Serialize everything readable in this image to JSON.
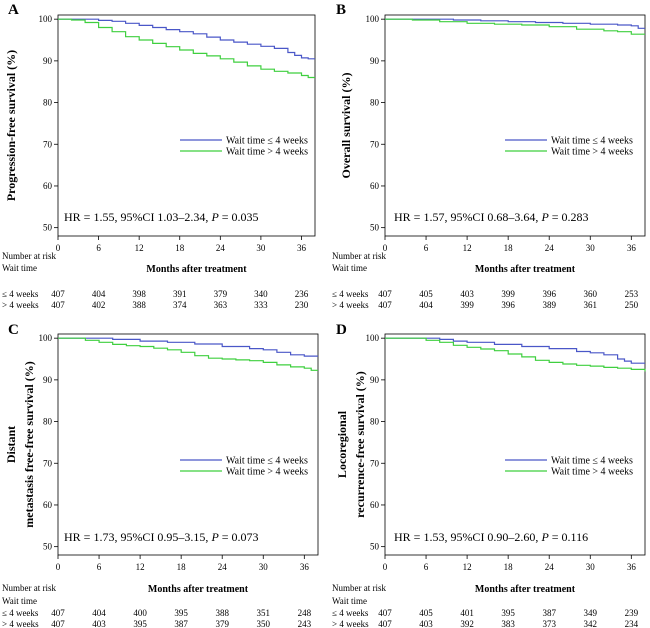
{
  "colors": {
    "short": "#4a57c8",
    "long": "#3fcf3f"
  },
  "risk_header": {
    "number_at_risk": "Number at risk",
    "wait_time": "Wait time"
  },
  "chart_data": [
    {
      "type": "line",
      "panel": "A",
      "ylabel": "Progression-free survival (%)",
      "ylabel_lines": [
        "Progression-free survival (%)"
      ],
      "xlabel": "Months after treatment",
      "xlim": [
        0,
        38
      ],
      "ylim": [
        48,
        101
      ],
      "xticks": [
        0,
        6,
        12,
        18,
        24,
        30,
        36
      ],
      "yticks": [
        50,
        60,
        70,
        80,
        90,
        100
      ],
      "legend": [
        "Wait time ≤ 4 weeks",
        "Wait time > 4 weeks"
      ],
      "annotation": {
        "prefix": "HR = 1.55, 95%CI 1.03–2.34, ",
        "p_label": "P",
        "suffix": " = 0.035"
      },
      "series": [
        {
          "name": "Wait time ≤ 4 weeks",
          "x": [
            0,
            4,
            6,
            8,
            10,
            12,
            14,
            16,
            18,
            20,
            22,
            24,
            26,
            28,
            30,
            32,
            34,
            35,
            36,
            37,
            38
          ],
          "y": [
            100,
            100,
            99.7,
            99.5,
            99.0,
            98.5,
            98.0,
            97.5,
            97.0,
            96.5,
            95.7,
            95.0,
            94.5,
            94.0,
            93.5,
            93.0,
            92.0,
            91.3,
            90.7,
            90.5,
            90.5
          ]
        },
        {
          "name": "Wait time > 4 weeks",
          "x": [
            0,
            2,
            4,
            6,
            8,
            10,
            12,
            14,
            16,
            18,
            20,
            22,
            24,
            26,
            28,
            30,
            32,
            34,
            36,
            37,
            38
          ],
          "y": [
            100,
            99.8,
            99.2,
            98.0,
            97.0,
            95.8,
            95.0,
            94.2,
            93.4,
            92.6,
            91.8,
            91.2,
            90.5,
            89.7,
            88.8,
            88.0,
            87.5,
            87.1,
            86.5,
            86.0,
            86.0
          ]
        }
      ],
      "risk_table": {
        "rows": [
          {
            "label": "≤ 4 weeks",
            "values": [
              "407",
              "404",
              "398",
              "391",
              "379",
              "340",
              "236"
            ]
          },
          {
            "label": "> 4 weeks",
            "values": [
              "407",
              "402",
              "388",
              "374",
              "363",
              "333",
              "230"
            ]
          }
        ]
      }
    },
    {
      "type": "line",
      "panel": "B",
      "ylabel": "Overall survival (%)",
      "ylabel_lines": [
        "Overall survival (%)"
      ],
      "xlabel": "Months after treatment",
      "xlim": [
        0,
        38
      ],
      "ylim": [
        48,
        101
      ],
      "xticks": [
        0,
        6,
        12,
        18,
        24,
        30,
        36
      ],
      "yticks": [
        50,
        60,
        70,
        80,
        90,
        100
      ],
      "legend": [
        "Wait time ≤ 4 weeks",
        "Wait time > 4 weeks"
      ],
      "annotation": {
        "prefix": "HR = 1.57, 95%CI 0.68–3.64, ",
        "p_label": "P",
        "suffix": " = 0.283"
      },
      "series": [
        {
          "name": "Wait time ≤ 4 weeks",
          "x": [
            0,
            6,
            10,
            14,
            18,
            22,
            26,
            30,
            34,
            36,
            37,
            38
          ],
          "y": [
            100,
            100,
            99.8,
            99.6,
            99.4,
            99.2,
            99.0,
            98.8,
            98.6,
            98.4,
            97.8,
            97.8
          ]
        },
        {
          "name": "Wait time > 4 weeks",
          "x": [
            0,
            4,
            8,
            12,
            16,
            20,
            24,
            28,
            32,
            34,
            36,
            38
          ],
          "y": [
            100,
            99.8,
            99.4,
            99.0,
            98.8,
            98.6,
            98.2,
            97.6,
            97.2,
            97.0,
            96.4,
            96.4
          ]
        }
      ],
      "risk_table": {
        "rows": [
          {
            "label": "≤ 4 weeks",
            "values": [
              "407",
              "405",
              "403",
              "399",
              "396",
              "360",
              "253"
            ]
          },
          {
            "label": "> 4 weeks",
            "values": [
              "407",
              "404",
              "399",
              "396",
              "389",
              "361",
              "250"
            ]
          }
        ]
      }
    },
    {
      "type": "line",
      "panel": "C",
      "ylabel": "Distant metastasis free-free survival (%)",
      "ylabel_lines": [
        "Distant",
        "metastasis free-free survival (%)"
      ],
      "xlabel": "Months after treatment",
      "xlim": [
        0,
        38
      ],
      "ylim": [
        48,
        101
      ],
      "xticks": [
        0,
        6,
        12,
        18,
        24,
        30,
        36
      ],
      "yticks": [
        50,
        60,
        70,
        80,
        90,
        100
      ],
      "legend": [
        "Wait time ≤ 4 weeks",
        "Wait time > 4 weeks"
      ],
      "annotation": {
        "prefix": "HR = 1.73, 95%CI 0.95–3.15, ",
        "p_label": "P",
        "suffix": " = 0.073"
      },
      "series": [
        {
          "name": "Wait time ≤ 4 weeks",
          "x": [
            0,
            4,
            8,
            12,
            16,
            20,
            24,
            28,
            30,
            32,
            34,
            36,
            38
          ],
          "y": [
            100,
            100,
            99.7,
            99.3,
            99.0,
            98.6,
            98.0,
            97.5,
            97.2,
            96.6,
            96.0,
            95.7,
            95.7
          ]
        },
        {
          "name": "Wait time > 4 weeks",
          "x": [
            0,
            4,
            6,
            8,
            10,
            12,
            14,
            16,
            18,
            20,
            22,
            24,
            26,
            28,
            30,
            32,
            34,
            36,
            37,
            38
          ],
          "y": [
            100,
            99.5,
            99.0,
            98.5,
            98.2,
            98.0,
            97.6,
            97.2,
            96.6,
            95.8,
            95.2,
            95.0,
            94.8,
            94.6,
            94.2,
            93.6,
            93.1,
            92.8,
            92.3,
            92.3
          ]
        }
      ],
      "risk_table": {
        "rows": [
          {
            "label": "≤ 4 weeks",
            "values": [
              "407",
              "404",
              "400",
              "395",
              "388",
              "351",
              "248"
            ]
          },
          {
            "label": "> 4 weeks",
            "values": [
              "407",
              "403",
              "395",
              "387",
              "379",
              "350",
              "243"
            ]
          }
        ]
      }
    },
    {
      "type": "line",
      "panel": "D",
      "ylabel": "Locoregional recurrence-free survival (%)",
      "ylabel_lines": [
        "Locoregional",
        "recurrence-free  survival (%)"
      ],
      "xlabel": "Months after treatment",
      "xlim": [
        0,
        38
      ],
      "ylim": [
        48,
        101
      ],
      "xticks": [
        0,
        6,
        12,
        18,
        24,
        30,
        36
      ],
      "yticks": [
        50,
        60,
        70,
        80,
        90,
        100
      ],
      "legend": [
        "Wait time ≤ 4 weeks",
        "Wait time > 4 weeks"
      ],
      "annotation": {
        "prefix": "HR = 1.53, 95%CI 0.90–2.60, ",
        "p_label": "P",
        "suffix": " = 0.116"
      },
      "series": [
        {
          "name": "Wait time ≤ 4 weeks",
          "x": [
            0,
            4,
            8,
            10,
            12,
            16,
            20,
            24,
            28,
            30,
            32,
            34,
            35,
            36,
            38
          ],
          "y": [
            100,
            100,
            99.7,
            99.3,
            99.0,
            98.5,
            98.0,
            97.5,
            96.8,
            96.5,
            96.0,
            95.0,
            94.5,
            94.0,
            94.0
          ]
        },
        {
          "name": "Wait time > 4 weeks",
          "x": [
            0,
            4,
            6,
            8,
            10,
            12,
            14,
            16,
            18,
            20,
            22,
            24,
            26,
            28,
            30,
            32,
            34,
            36,
            38
          ],
          "y": [
            100,
            100,
            99.5,
            99.0,
            98.3,
            97.8,
            97.4,
            97.0,
            96.2,
            95.5,
            94.7,
            94.2,
            93.8,
            93.5,
            93.3,
            93.0,
            92.8,
            92.5,
            92.0
          ]
        }
      ],
      "risk_table": {
        "rows": [
          {
            "label": "≤ 4 weeks",
            "values": [
              "407",
              "405",
              "401",
              "395",
              "387",
              "349",
              "239"
            ]
          },
          {
            "label": "> 4 weeks",
            "values": [
              "407",
              "403",
              "392",
              "383",
              "373",
              "342",
              "234"
            ]
          }
        ]
      }
    }
  ]
}
